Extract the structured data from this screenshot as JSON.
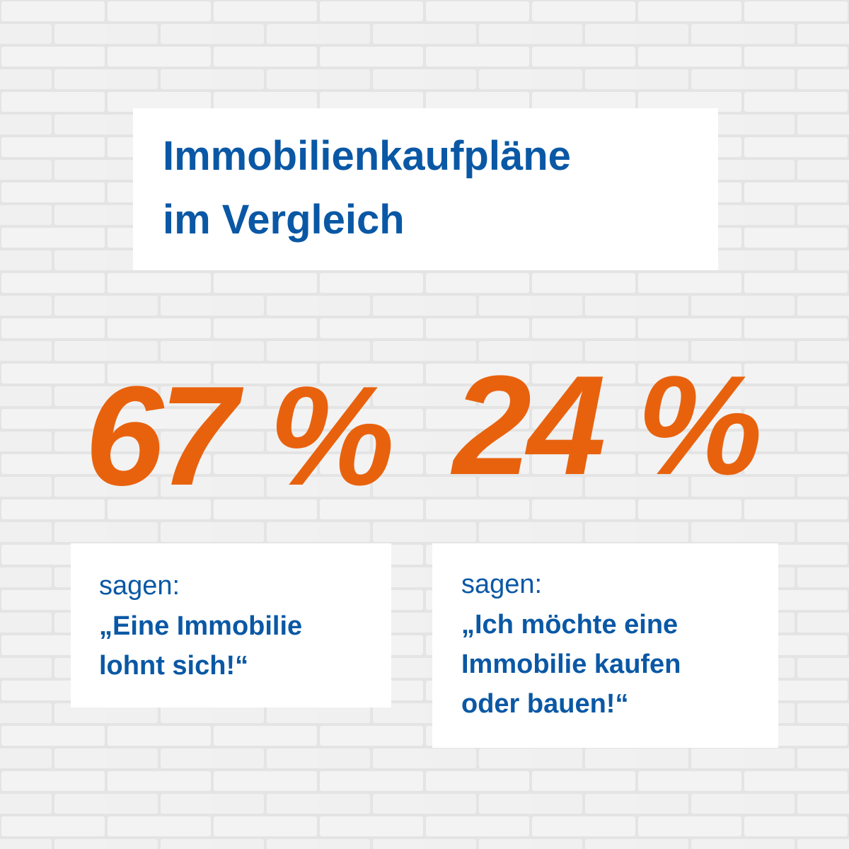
{
  "header": {
    "title_lines": [
      "Immobilienkaufpläne",
      "im Vergleich"
    ]
  },
  "stats": [
    {
      "value": "67 %",
      "intro": "sagen:",
      "quote_lines": [
        "„Eine Immobilie",
        "lohnt sich!“"
      ]
    },
    {
      "value": "24 %",
      "intro": "sagen:",
      "quote_lines": [
        "„Ich möchte eine",
        "Immobilie kaufen",
        "oder bauen!“"
      ]
    }
  ]
}
